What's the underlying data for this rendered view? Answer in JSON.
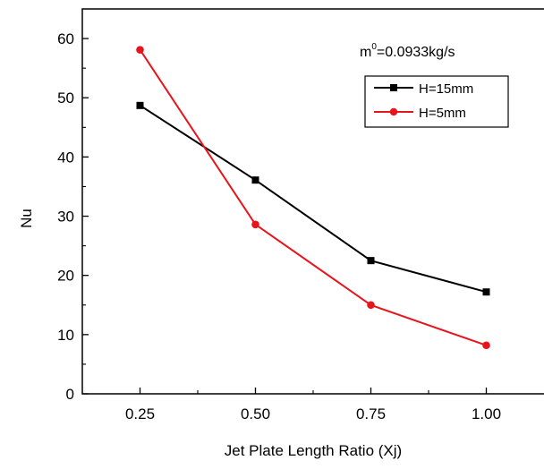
{
  "chart_data": {
    "type": "line",
    "title": "",
    "xlabel": "Jet Plate Length Ratio (Xj)",
    "ylabel": "Nu",
    "x": [
      0.25,
      0.5,
      0.75,
      1.0
    ],
    "x_tick_labels": [
      "0.25",
      "0.50",
      "0.75",
      "1.00"
    ],
    "y_ticks": [
      0,
      10,
      20,
      30,
      40,
      50,
      60
    ],
    "y_tick_labels": [
      "0",
      "10",
      "20",
      "30",
      "40",
      "50",
      "60"
    ],
    "xlim": [
      0.125,
      1.125
    ],
    "ylim": [
      0,
      65
    ],
    "grid": false,
    "legend_position": "top-right",
    "annotation": {
      "prefix": "m",
      "superscript": "0",
      "suffix": "=0.0933kg/s"
    },
    "series": [
      {
        "name": "H=15mm",
        "color": "#000000",
        "marker": "square",
        "values": [
          48.7,
          36.1,
          22.5,
          17.2
        ]
      },
      {
        "name": "H=5mm",
        "color": "#e8141c",
        "marker": "circle",
        "values": [
          58.1,
          28.6,
          15.0,
          8.2
        ]
      }
    ]
  }
}
